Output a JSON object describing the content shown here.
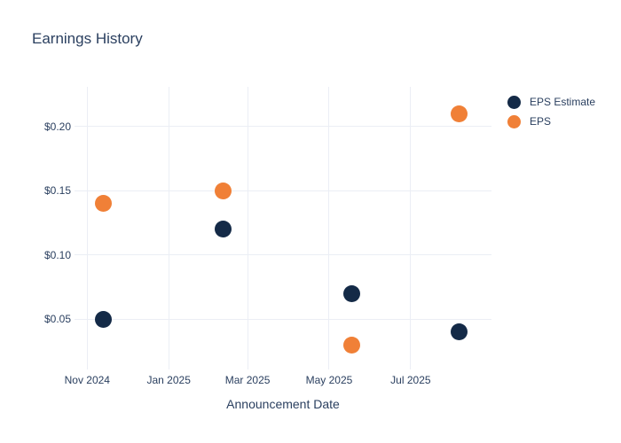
{
  "chart_data": {
    "type": "scatter",
    "title": "Earnings History",
    "xlabel": "Announcement Date",
    "ylabel": "",
    "grid": true,
    "legend_position": "outside-top-right",
    "background_color": "#ffffff",
    "gridline_color": "#ebeef5",
    "text_color": "#2a3f5f",
    "x_tick_labels": [
      "Nov 2024",
      "Jan 2025",
      "Mar 2025",
      "May 2025",
      "Jul 2025"
    ],
    "x_tick_days": [
      0,
      61,
      120,
      181,
      242
    ],
    "x_range_days": [
      -9.5,
      302.5
    ],
    "x_reference": "days measured from Nov 1 2024 axis tick",
    "y_tick_labels": [
      "$0.05",
      "$0.10",
      "$0.15",
      "$0.20"
    ],
    "y_tick_values": [
      0.05,
      0.1,
      0.15,
      0.2
    ],
    "ylim": [
      0.011,
      0.231
    ],
    "x_days": [
      12,
      102,
      198,
      278
    ],
    "x_dates_approx": [
      "2024-11-13",
      "2025-02-11",
      "2025-05-18",
      "2025-08-06"
    ],
    "series": [
      {
        "name": "EPS Estimate",
        "color": "#142a47",
        "values": [
          0.05,
          0.12,
          0.07,
          0.04
        ]
      },
      {
        "name": "EPS",
        "color": "#f08037",
        "values": [
          0.14,
          0.15,
          0.03,
          0.21
        ]
      }
    ]
  }
}
